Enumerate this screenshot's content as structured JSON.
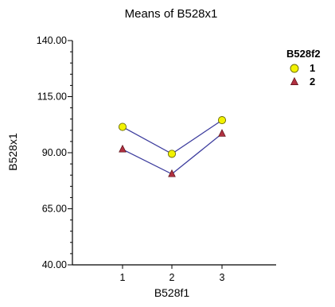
{
  "chart_data": {
    "type": "line",
    "title": "Means of B528x1",
    "xlabel": "B528f1",
    "ylabel": "B528x1",
    "categories": [
      "1",
      "2",
      "3"
    ],
    "ylim": [
      40,
      140
    ],
    "yticks": [
      "40.00",
      "65.00",
      "90.00",
      "115.00",
      "140.00"
    ],
    "legend": {
      "title": "B528f2",
      "position": "top-right"
    },
    "grid": false,
    "series": [
      {
        "name": "1",
        "values": [
          101.5,
          89.5,
          104.5
        ],
        "marker": "circle",
        "marker_color": "#f2f200",
        "line_color": "#3d3d9e"
      },
      {
        "name": "2",
        "values": [
          91.5,
          80.5,
          98.5
        ],
        "marker": "triangle",
        "marker_color": "#b03040",
        "line_color": "#3d3d9e"
      }
    ]
  }
}
